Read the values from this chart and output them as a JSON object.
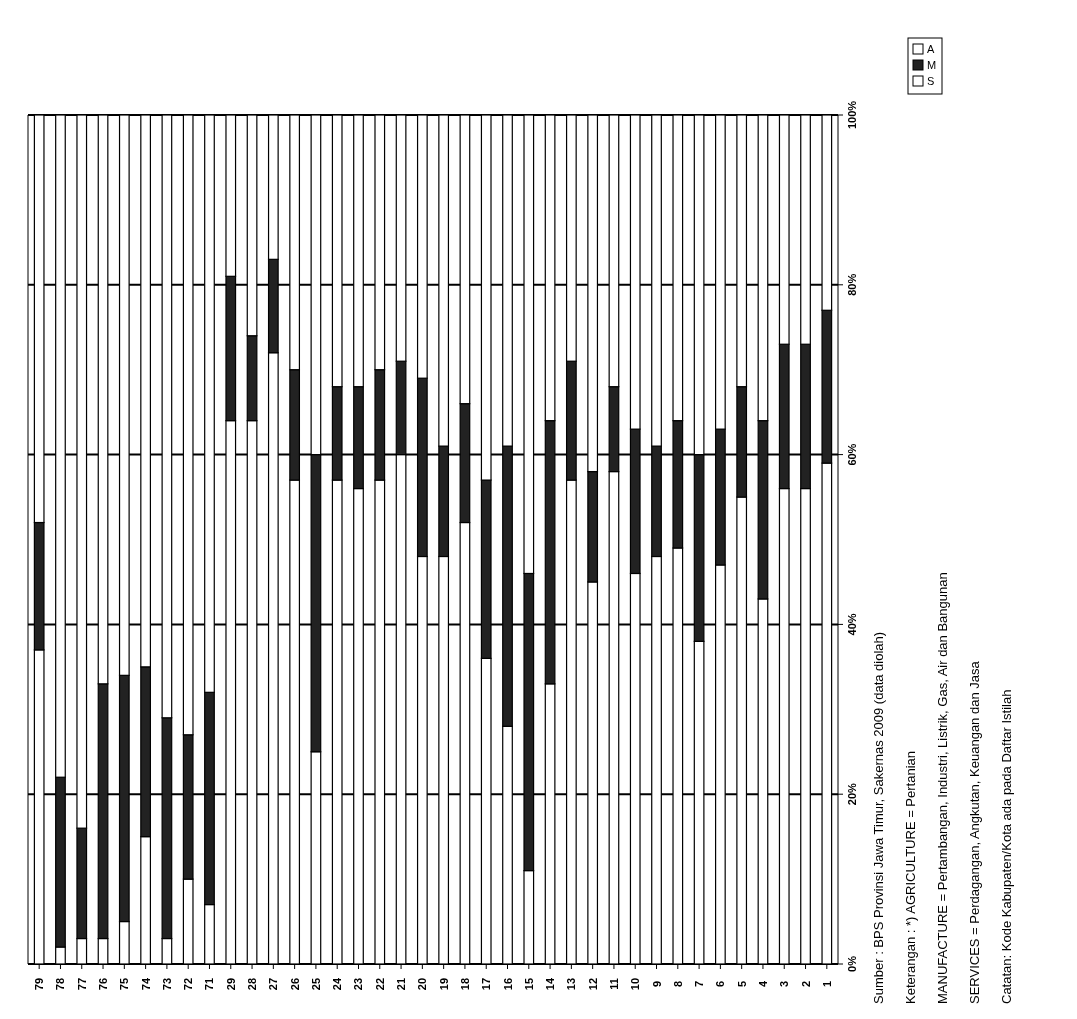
{
  "chart_data": {
    "type": "bar",
    "stacked": true,
    "categories": [
      "79",
      "78",
      "77",
      "76",
      "75",
      "74",
      "73",
      "72",
      "71",
      "29",
      "28",
      "27",
      "26",
      "25",
      "24",
      "23",
      "22",
      "21",
      "20",
      "19",
      "18",
      "17",
      "16",
      "15",
      "14",
      "13",
      "12",
      "11",
      "10",
      "9",
      "8",
      "7",
      "6",
      "5",
      "4",
      "3",
      "2",
      "1"
    ],
    "series": [
      {
        "name": "A",
        "color": "#ffffff",
        "values": [
          37,
          2,
          3,
          3,
          5,
          15,
          3,
          10,
          7,
          64,
          64,
          72,
          57,
          25,
          57,
          56,
          57,
          60,
          48,
          48,
          52,
          36,
          28,
          11,
          33,
          57,
          45,
          58,
          46,
          48,
          49,
          38,
          47,
          55,
          43,
          56,
          56,
          59
        ]
      },
      {
        "name": "M",
        "color": "#222222",
        "values": [
          15,
          20,
          13,
          30,
          29,
          20,
          26,
          17,
          25,
          17,
          10,
          11,
          13,
          35,
          11,
          12,
          13,
          11,
          21,
          13,
          14,
          21,
          33,
          35,
          31,
          14,
          13,
          10,
          17,
          13,
          15,
          22,
          16,
          13,
          21,
          17,
          17,
          18
        ]
      },
      {
        "name": "S",
        "color": "#ffffff",
        "values": [
          48,
          78,
          84,
          67,
          66,
          65,
          71,
          73,
          68,
          19,
          26,
          17,
          30,
          40,
          32,
          32,
          30,
          29,
          31,
          39,
          34,
          43,
          39,
          54,
          36,
          29,
          42,
          32,
          37,
          39,
          36,
          40,
          37,
          32,
          36,
          27,
          27,
          23
        ]
      }
    ],
    "ylim": [
      0,
      100
    ],
    "yticks": [
      {
        "value": 0,
        "label": "0%"
      },
      {
        "value": 20,
        "label": "20%"
      },
      {
        "value": 40,
        "label": "40%"
      },
      {
        "value": 60,
        "label": "60%"
      },
      {
        "value": 80,
        "label": "80%"
      },
      {
        "value": 100,
        "label": "100%"
      }
    ],
    "grid": "y",
    "legend": "top right",
    "annotations": [
      "Sumber : BPS Provinsi Jawa Timur, Sakernas 2009 (data diolah)",
      "Keterangan : *) AGRICULTURE = Pertanian",
      "MANUFACTURE = Pertambangan, Industri, Listrik, Gas, Air dan Bangunan",
      "SERVICES = Perdagangan, Angkutan, Keuangan dan Jasa",
      "Catatan: Kode Kabupaten/Kota ada pada Daftar Istilah"
    ]
  }
}
